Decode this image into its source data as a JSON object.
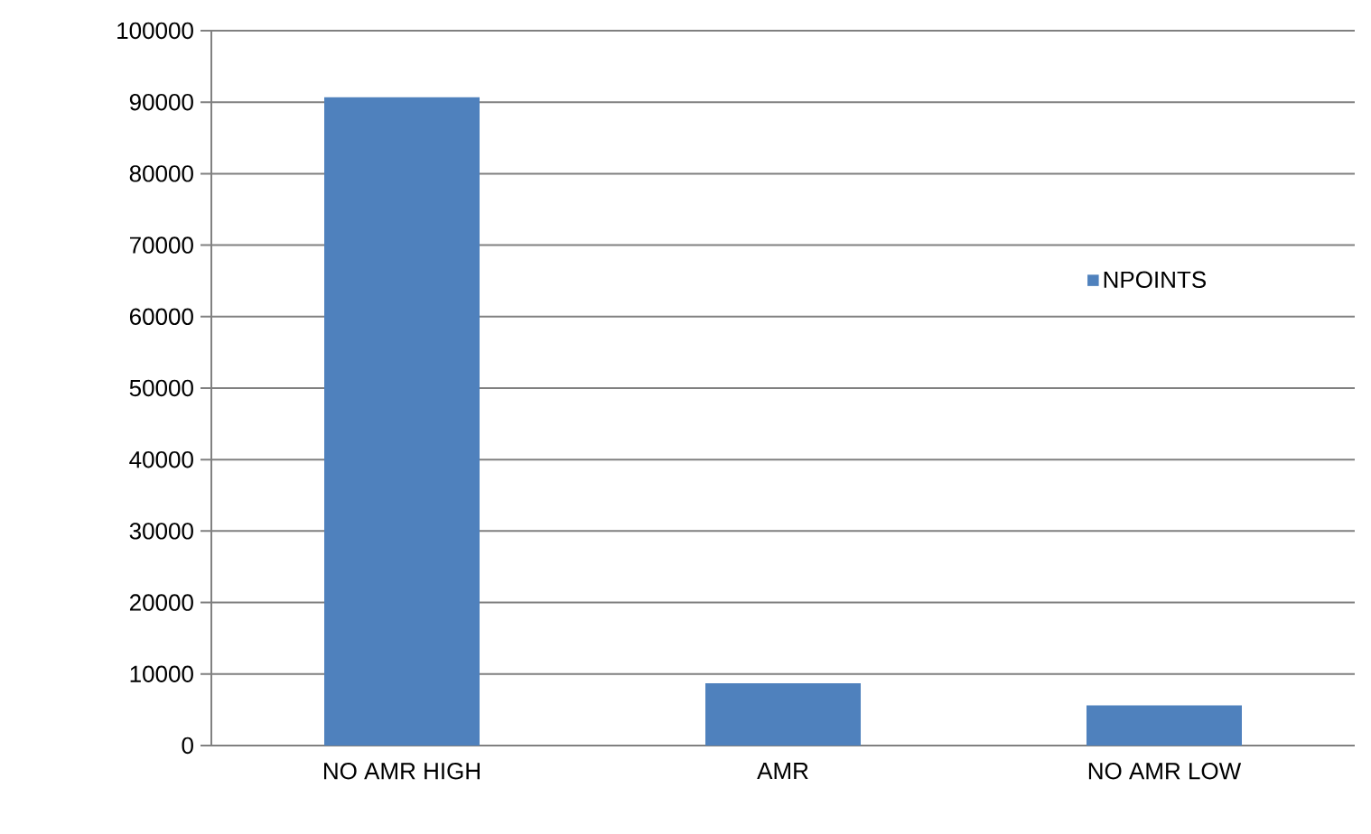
{
  "chart_data": {
    "type": "bar",
    "categories": [
      "NO AMR HIGH",
      "AMR",
      "NO AMR LOW"
    ],
    "series": [
      {
        "name": "NPOINTS",
        "color": "#4f81bd",
        "values": [
          90700,
          8700,
          5600
        ]
      }
    ],
    "ylim": [
      0,
      100000
    ],
    "yticks": [
      0,
      10000,
      20000,
      30000,
      40000,
      50000,
      60000,
      70000,
      80000,
      90000,
      100000
    ],
    "grid": "y",
    "legend": "right"
  }
}
